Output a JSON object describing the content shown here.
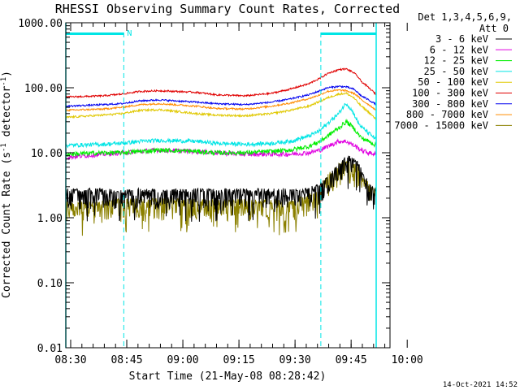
{
  "chart_data": {
    "type": "line",
    "title": "RHESSI Observing Summary Count Rates, Corrected",
    "xlabel": "Start Time (21-May-08 08:28:42)",
    "ylabel_parts": [
      "Corrected Count Rate (s",
      "-1",
      " detector",
      "-1",
      ")"
    ],
    "yscale": "log",
    "ylim": [
      0.01,
      1000
    ],
    "xlim_minutes": [
      0,
      83
    ],
    "y_ticks": [
      {
        "value": 1000,
        "label": "1000.00"
      },
      {
        "value": 100,
        "label": "100.00"
      },
      {
        "value": 10,
        "label": "10.00"
      },
      {
        "value": 1,
        "label": "1.00"
      },
      {
        "value": 0.1,
        "label": "0.10"
      },
      {
        "value": 0.01,
        "label": "0.01"
      }
    ],
    "x_ticks": [
      {
        "minute": 1.3,
        "label": "08:30"
      },
      {
        "minute": 16.3,
        "label": "08:45"
      },
      {
        "minute": 31.3,
        "label": "09:00"
      },
      {
        "minute": 46.3,
        "label": "09:15"
      },
      {
        "minute": 61.3,
        "label": "09:30"
      },
      {
        "minute": 76.3,
        "label": "09:45"
      },
      {
        "minute": 91.3,
        "label": "10:00"
      }
    ],
    "legend_header": [
      "Det 1,3,4,5,6,9,",
      "Att 0"
    ],
    "legend_position": "top-right outside",
    "minutes": [
      0,
      10,
      15,
      20,
      25,
      35,
      40,
      48,
      55,
      60,
      65,
      68,
      70,
      73,
      75,
      77,
      78,
      79,
      81,
      83
    ],
    "series": [
      {
        "name": "3 - 6 keV",
        "color": "#000000",
        "noise": 0.45,
        "values": [
          2.5,
          2.5,
          2.4,
          2.5,
          2.4,
          2.5,
          2.5,
          2.5,
          2.5,
          2.5,
          2.6,
          3.0,
          4.0,
          6.0,
          8.0,
          8.0,
          7.0,
          5.0,
          3.0,
          2.5
        ]
      },
      {
        "name": "6 - 12 keV",
        "color": "#e000e0",
        "noise": 0.08,
        "values": [
          8.5,
          9.5,
          10.0,
          10.5,
          11.0,
          10.5,
          10.0,
          9.5,
          9.5,
          9.5,
          10.0,
          11.0,
          12.5,
          15.0,
          15.0,
          13.0,
          12.0,
          11.0,
          10.0,
          9.5
        ]
      },
      {
        "name": "12 - 25 keV",
        "color": "#00ee00",
        "noise": 0.08,
        "values": [
          9.5,
          10.0,
          10.0,
          10.5,
          11.0,
          10.5,
          10.0,
          10.0,
          10.5,
          11.0,
          12.5,
          15.0,
          18.0,
          24.0,
          30.0,
          24.0,
          20.0,
          17.0,
          15.0,
          13.0
        ]
      },
      {
        "name": "25 - 50 keV",
        "color": "#00e5e5",
        "noise": 0.07,
        "values": [
          13.0,
          13.5,
          14.0,
          15.0,
          15.5,
          15.0,
          14.0,
          13.5,
          14.0,
          15.0,
          18.0,
          22.0,
          28.0,
          40.0,
          58.0,
          40.0,
          30.0,
          25.0,
          20.0,
          16.0
        ]
      },
      {
        "name": "50 - 100 keV",
        "color": "#e0c800",
        "noise": 0.035,
        "values": [
          35.0,
          38.0,
          40.0,
          45.0,
          46.0,
          40.0,
          38.0,
          37.0,
          40.0,
          45.0,
          52.0,
          62.0,
          70.0,
          80.0,
          82.0,
          70.0,
          60.0,
          52.0,
          42.0,
          32.0
        ]
      },
      {
        "name": "100 - 300 keV",
        "color": "#e00000",
        "noise": 0.03,
        "values": [
          72.0,
          75.0,
          80.0,
          88.0,
          90.0,
          85.0,
          78.0,
          75.0,
          82.0,
          95.0,
          115.0,
          140.0,
          165.0,
          190.0,
          195.0,
          170.0,
          150.0,
          125.0,
          100.0,
          78.0
        ]
      },
      {
        "name": "300 - 800 keV",
        "color": "#0000ee",
        "noise": 0.03,
        "values": [
          52.0,
          55.0,
          57.0,
          63.0,
          65.0,
          60.0,
          57.0,
          55.0,
          60.0,
          67.0,
          78.0,
          90.0,
          100.0,
          105.0,
          103.0,
          95.0,
          85.0,
          75.0,
          65.0,
          55.0
        ]
      },
      {
        "name": "800 - 7000 keV",
        "color": "#ff8c00",
        "noise": 0.03,
        "values": [
          45.0,
          47.0,
          50.0,
          55.0,
          57.0,
          52.0,
          48.0,
          47.0,
          52.0,
          58.0,
          68.0,
          78.0,
          88.0,
          92.0,
          90.0,
          82.0,
          75.0,
          65.0,
          55.0,
          45.0
        ]
      },
      {
        "name": "7000 - 15000 keV",
        "color": "#8b8000",
        "noise": 0.5,
        "values": [
          1.6,
          1.6,
          1.8,
          1.7,
          1.8,
          1.7,
          1.7,
          1.7,
          1.7,
          1.6,
          2.0,
          2.5,
          4.0,
          6.0,
          7.0,
          6.5,
          5.5,
          4.0,
          3.0,
          2.5
        ]
      }
    ],
    "attenuator_bars": [
      {
        "start_minute": 0,
        "end_minute": 15.5,
        "label": "N",
        "color": "#00e5e5"
      },
      {
        "start_minute": 68.2,
        "end_minute": 83,
        "label": "",
        "color": "#00e5e5"
      }
    ],
    "dashed_lines_minutes": [
      15.5,
      68.2,
      83
    ],
    "solid_edge_minutes": [
      0,
      83
    ]
  },
  "footer": {
    "timestamp": "14-Oct-2021 14:52"
  }
}
